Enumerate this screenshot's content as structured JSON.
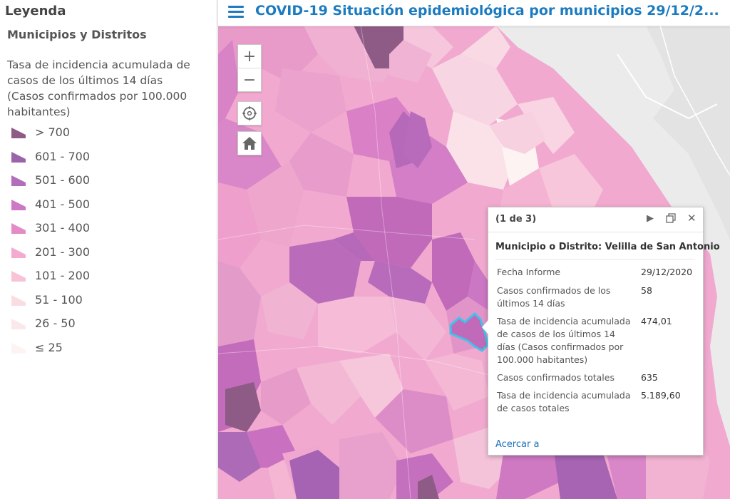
{
  "legend": {
    "title": "Leyenda",
    "layer_title": "Municipios y Distritos",
    "field_label": "Tasa de incidencia acumulada de casos de los últimos 14 días (Casos confirmados por 100.000 habitantes)",
    "classes": [
      {
        "label": "> 700",
        "color": "#8e5a86"
      },
      {
        "label": "601 - 700",
        "color": "#9b63a8"
      },
      {
        "label": "501 - 600",
        "color": "#b26dbb"
      },
      {
        "label": "401 - 500",
        "color": "#cd78c4"
      },
      {
        "label": "301 - 400",
        "color": "#e48cc6"
      },
      {
        "label": "201 - 300",
        "color": "#f4a9cf"
      },
      {
        "label": "101 - 200",
        "color": "#f8c3d7"
      },
      {
        "label": "51 - 100",
        "color": "#fadde2"
      },
      {
        "label": "26 - 50",
        "color": "#fbe8ea"
      },
      {
        "label": "≤ 25",
        "color": "#fdf3f3"
      }
    ]
  },
  "header": {
    "title": "COVID-19 Situación epidemiológica por municipios 29/12/2..."
  },
  "map_controls": {
    "zoom_in": "+",
    "zoom_out": "−"
  },
  "popup": {
    "pager": "(1 de 3)",
    "title": "Municipio o Distrito: Velilla de San Antonio",
    "rows": [
      {
        "label": "Fecha Informe",
        "value": "29/12/2020"
      },
      {
        "label": "Casos confirmados de los últimos 14 días",
        "value": "58"
      },
      {
        "label": "Tasa de incidencia acumulada de casos de los últimos 14 días (Casos confirmados por 100.000 habitantes)",
        "value": "474,01"
      },
      {
        "label": "Casos confirmados totales",
        "value": "635"
      },
      {
        "label": "Tasa de incidencia acumulada de casos totales",
        "value": "5.189,60"
      }
    ],
    "zoom_link": "Acercar a"
  },
  "colors": {
    "accent": "#1c7bc0",
    "selection_outline": "#3fc3ea"
  }
}
